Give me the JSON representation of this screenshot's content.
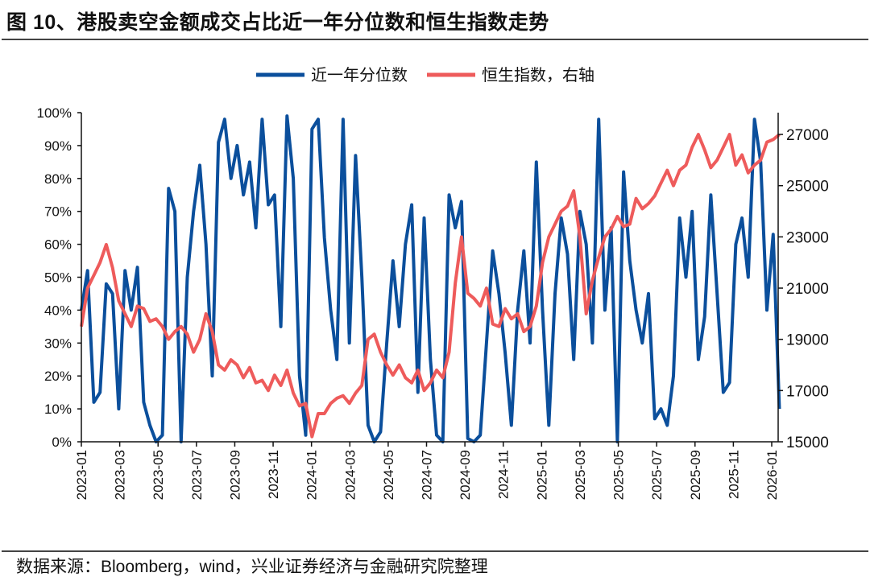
{
  "title": "图 10、港股卖空金额成交占比近一年分位数和恒生指数走势",
  "source": "数据来源：Bloomberg，wind，兴业证券经济与金融研究院整理",
  "chart_data": {
    "type": "line",
    "title": "图 10、港股卖空金额成交占比近一年分位数和恒生指数走势",
    "legend_position": "top-center",
    "grid": false,
    "x_range_months_from_2023_01": [
      0,
      36.4
    ],
    "x_ticks": [
      "2023-01",
      "2023-03",
      "2023-05",
      "2023-07",
      "2023-09",
      "2023-11",
      "2024-01",
      "2024-03",
      "2024-05",
      "2024-07",
      "2024-09",
      "2024-11",
      "2025-01",
      "2025-03",
      "2025-05",
      "2025-07",
      "2025-09",
      "2025-11",
      "2026-01"
    ],
    "y_left": {
      "ticks": [
        "0%",
        "10%",
        "20%",
        "30%",
        "40%",
        "50%",
        "60%",
        "70%",
        "80%",
        "90%",
        "100%"
      ],
      "range": [
        0,
        100
      ]
    },
    "y_right": {
      "ticks": [
        "15000",
        "17000",
        "19000",
        "21000",
        "23000",
        "25000",
        "27000"
      ],
      "range": [
        15000,
        27850
      ]
    },
    "series": [
      {
        "name": "近一年分位数",
        "axis": "left",
        "color": "#0b4f9c",
        "values": [
          40,
          52,
          12,
          15,
          48,
          45,
          10,
          52,
          40,
          53,
          12,
          5,
          0,
          2,
          77,
          70,
          0,
          50,
          70,
          84,
          60,
          20,
          91,
          98,
          80,
          90,
          75,
          85,
          65,
          98,
          72,
          75,
          35,
          99,
          80,
          20,
          2,
          95,
          98,
          62,
          40,
          25,
          98,
          30,
          87,
          50,
          5,
          0,
          3,
          30,
          55,
          35,
          60,
          72,
          15,
          68,
          25,
          2,
          0,
          75,
          65,
          73,
          1,
          0,
          2,
          30,
          58,
          45,
          27,
          5,
          40,
          58,
          30,
          85,
          40,
          5,
          45,
          68,
          57,
          25,
          70,
          60,
          30,
          98,
          40,
          65,
          0,
          82,
          55,
          40,
          30,
          45,
          7,
          10,
          5,
          20,
          68,
          50,
          70,
          25,
          38,
          75,
          45,
          15,
          18,
          60,
          68,
          50,
          98,
          85,
          40,
          63,
          10
        ]
      },
      {
        "name": "恒生指数，右轴",
        "axis": "right",
        "color": "#ee5b5b",
        "values": [
          19500,
          21000,
          21500,
          22000,
          22700,
          21800,
          20500,
          20000,
          19500,
          20300,
          20200,
          19700,
          19800,
          19500,
          19000,
          19300,
          19500,
          19200,
          18500,
          19000,
          20000,
          19300,
          18000,
          17800,
          18200,
          18000,
          17500,
          17900,
          17300,
          17400,
          17000,
          17600,
          17200,
          17800,
          16900,
          16400,
          16500,
          15200,
          16100,
          16100,
          16500,
          16700,
          16800,
          16500,
          16900,
          17200,
          19000,
          19200,
          18500,
          18000,
          17600,
          18000,
          17500,
          17300,
          17800,
          17000,
          17300,
          17800,
          17500,
          18500,
          21200,
          23000,
          20800,
          20600,
          20300,
          21000,
          19600,
          19500,
          20200,
          19800,
          20000,
          19300,
          19500,
          20300,
          22000,
          23000,
          23500,
          24000,
          24200,
          24800,
          23000,
          20000,
          21300,
          22200,
          23000,
          23300,
          23800,
          23400,
          23500,
          24500,
          24100,
          24300,
          24600,
          25100,
          25600,
          25000,
          25600,
          25800,
          26500,
          27000,
          26400,
          25700,
          26000,
          26500,
          27000,
          25800,
          26200,
          25500,
          25800,
          26000,
          26700,
          26800,
          27000
        ]
      }
    ]
  }
}
